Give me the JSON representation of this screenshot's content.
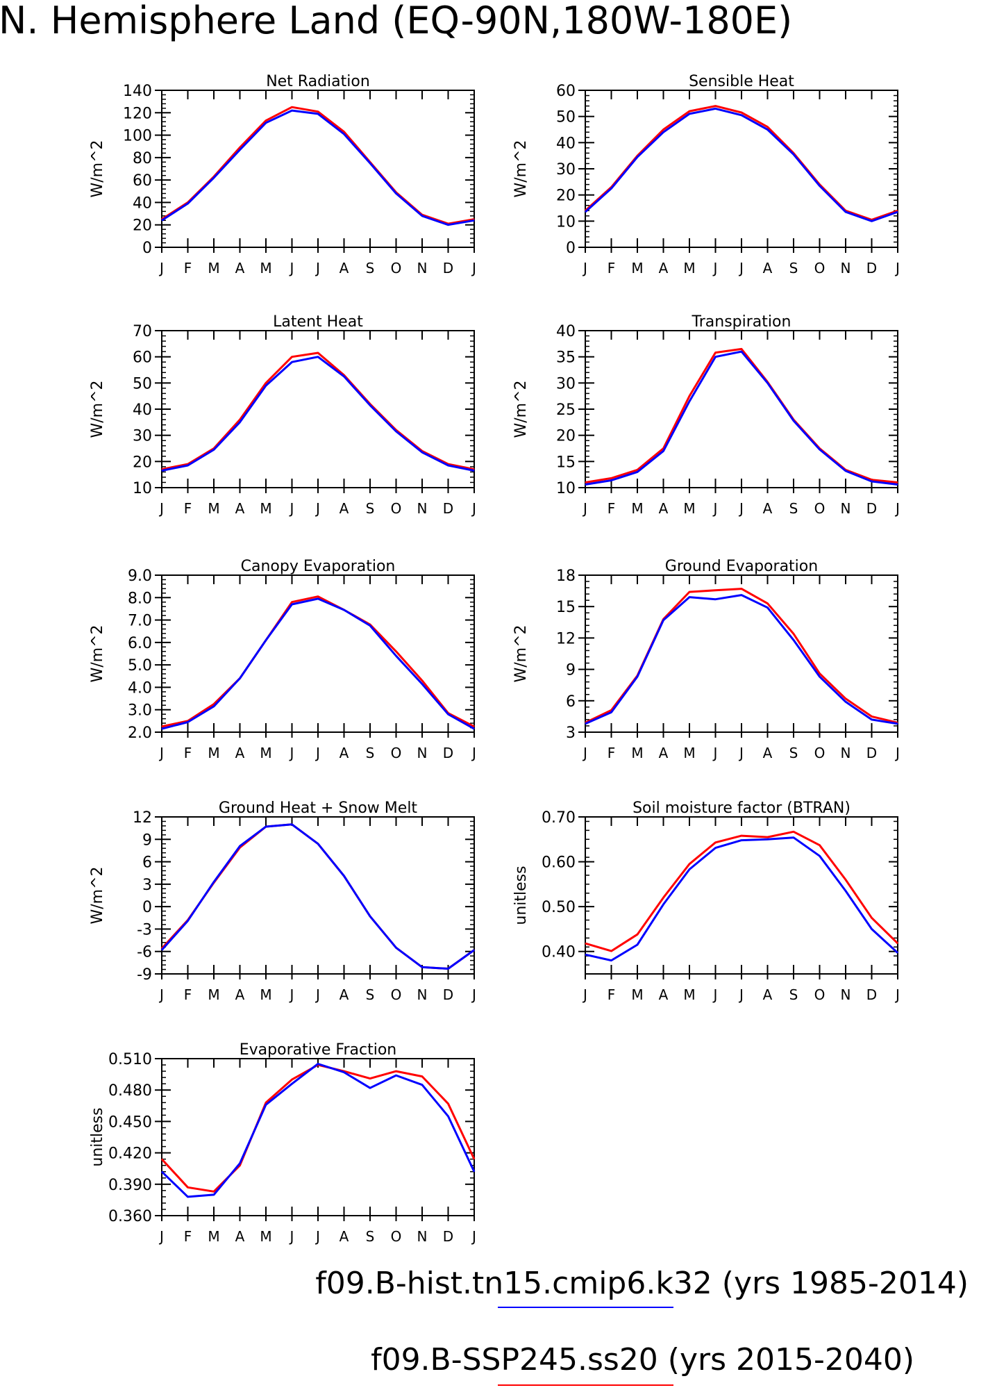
{
  "figure": {
    "title": "N. Hemisphere Land (EQ-90N,180W-180E)",
    "legend": [
      {
        "label": "f09.B-hist.tn15.cmip6.k32 (yrs 1985-2014)",
        "color": "#0000ff"
      },
      {
        "label": "f09.B-SSP245.ss20 (yrs 2015-2040)",
        "color": "#ff0000"
      }
    ],
    "colors": {
      "series_hist": "#0000ff",
      "series_ssp": "#ff0000",
      "axes": "#000000"
    }
  },
  "chart_data": [
    {
      "type": "line",
      "title": "Net Radiation",
      "ylabel": "W/m^2",
      "ylim": [
        0,
        140
      ],
      "yticks": [
        0,
        20,
        40,
        60,
        80,
        100,
        120,
        140
      ],
      "ytick_labels": [
        "0",
        "20",
        "40",
        "60",
        "80",
        "100",
        "120",
        "140"
      ],
      "categories": [
        "J",
        "F",
        "M",
        "A",
        "M",
        "J",
        "J",
        "A",
        "S",
        "O",
        "N",
        "D",
        "J"
      ],
      "series": [
        {
          "color": "#ff0000",
          "values": [
            25,
            40,
            63,
            89,
            113,
            125,
            121,
            103,
            76,
            49,
            29,
            21,
            25
          ]
        },
        {
          "color": "#0000ff",
          "values": [
            24,
            39,
            62,
            87,
            111,
            122,
            119,
            101,
            75,
            48,
            28,
            20,
            24
          ]
        }
      ]
    },
    {
      "type": "line",
      "title": "Sensible Heat",
      "ylabel": "W/m^2",
      "ylim": [
        0,
        60
      ],
      "yticks": [
        0,
        10,
        20,
        30,
        40,
        50,
        60
      ],
      "ytick_labels": [
        "0",
        "10",
        "20",
        "30",
        "40",
        "50",
        "60"
      ],
      "categories": [
        "J",
        "F",
        "M",
        "A",
        "M",
        "J",
        "J",
        "A",
        "S",
        "O",
        "N",
        "D",
        "J"
      ],
      "series": [
        {
          "color": "#ff0000",
          "values": [
            14,
            23,
            35,
            45,
            52,
            54,
            51.5,
            46,
            36,
            24,
            14,
            10.5,
            14
          ]
        },
        {
          "color": "#0000ff",
          "values": [
            13.5,
            22.5,
            34.5,
            44,
            51,
            53,
            50.5,
            45,
            35.5,
            23.5,
            13.5,
            10,
            13.5
          ]
        }
      ]
    },
    {
      "type": "line",
      "title": "Latent Heat",
      "ylabel": "W/m^2",
      "ylim": [
        10,
        70
      ],
      "yticks": [
        10,
        20,
        30,
        40,
        50,
        60,
        70
      ],
      "ytick_labels": [
        "10",
        "20",
        "30",
        "40",
        "50",
        "60",
        "70"
      ],
      "categories": [
        "J",
        "F",
        "M",
        "A",
        "M",
        "J",
        "J",
        "A",
        "S",
        "O",
        "N",
        "D",
        "J"
      ],
      "series": [
        {
          "color": "#ff0000",
          "values": [
            17,
            19,
            25,
            36,
            50,
            60,
            61.5,
            53,
            42,
            32,
            24,
            19,
            17
          ]
        },
        {
          "color": "#0000ff",
          "values": [
            16.5,
            18.5,
            24.5,
            35,
            49,
            58,
            60,
            52.5,
            41.5,
            31.5,
            23.5,
            18.5,
            16.5
          ]
        }
      ]
    },
    {
      "type": "line",
      "title": "Transpiration",
      "ylabel": "W/m^2",
      "ylim": [
        10,
        40
      ],
      "yticks": [
        10,
        15,
        20,
        25,
        30,
        35,
        40
      ],
      "ytick_labels": [
        "10",
        "15",
        "20",
        "25",
        "30",
        "35",
        "40"
      ],
      "categories": [
        "J",
        "F",
        "M",
        "A",
        "M",
        "J",
        "J",
        "A",
        "S",
        "O",
        "N",
        "D",
        "J"
      ],
      "series": [
        {
          "color": "#ff0000",
          "values": [
            11,
            11.8,
            13.4,
            17.5,
            27.5,
            35.8,
            36.5,
            30.2,
            23,
            17.5,
            13.4,
            11.5,
            11
          ]
        },
        {
          "color": "#0000ff",
          "values": [
            10.6,
            11.4,
            13,
            17,
            26.5,
            35,
            36,
            30,
            22.8,
            17.3,
            13.2,
            11.2,
            10.6
          ]
        }
      ]
    },
    {
      "type": "line",
      "title": "Canopy Evaporation",
      "ylabel": "W/m^2",
      "ylim": [
        2.0,
        9.0
      ],
      "yticks": [
        2,
        3,
        4,
        5,
        6,
        7,
        8,
        9
      ],
      "ytick_labels": [
        "2.0",
        "3.0",
        "4.0",
        "5.0",
        "6.0",
        "7.0",
        "8.0",
        "9.0"
      ],
      "categories": [
        "J",
        "F",
        "M",
        "A",
        "M",
        "J",
        "J",
        "A",
        "S",
        "O",
        "N",
        "D",
        "J"
      ],
      "series": [
        {
          "color": "#ff0000",
          "values": [
            2.25,
            2.5,
            3.25,
            4.4,
            6.1,
            7.8,
            8.05,
            7.45,
            6.8,
            5.6,
            4.3,
            2.85,
            2.25
          ]
        },
        {
          "color": "#0000ff",
          "values": [
            2.15,
            2.45,
            3.15,
            4.4,
            6.1,
            7.7,
            7.95,
            7.45,
            6.75,
            5.4,
            4.15,
            2.8,
            2.15
          ]
        }
      ]
    },
    {
      "type": "line",
      "title": "Ground Evaporation",
      "ylabel": "W/m^2",
      "ylim": [
        3,
        18
      ],
      "yticks": [
        3,
        6,
        9,
        12,
        15,
        18
      ],
      "ytick_labels": [
        "3",
        "6",
        "9",
        "12",
        "15",
        "18"
      ],
      "categories": [
        "J",
        "F",
        "M",
        "A",
        "M",
        "J",
        "J",
        "A",
        "S",
        "O",
        "N",
        "D",
        "J"
      ],
      "series": [
        {
          "color": "#ff0000",
          "values": [
            3.9,
            5.1,
            8.4,
            13.8,
            16.4,
            16.55,
            16.7,
            15.3,
            12.4,
            8.6,
            6.2,
            4.5,
            3.9
          ]
        },
        {
          "color": "#0000ff",
          "values": [
            3.8,
            4.9,
            8.3,
            13.7,
            15.9,
            15.7,
            16.1,
            14.9,
            11.8,
            8.3,
            5.9,
            4.2,
            3.8
          ]
        }
      ]
    },
    {
      "type": "line",
      "title": "Ground Heat + Snow Melt",
      "ylabel": "W/m^2",
      "ylim": [
        -9,
        12
      ],
      "yticks": [
        -9,
        -6,
        -3,
        0,
        3,
        6,
        9,
        12
      ],
      "ytick_labels": [
        "-9",
        "-6",
        "-3",
        "0",
        "3",
        "6",
        "9",
        "12"
      ],
      "categories": [
        "J",
        "F",
        "M",
        "A",
        "M",
        "J",
        "J",
        "A",
        "S",
        "O",
        "N",
        "D",
        "J"
      ],
      "series": [
        {
          "color": "#ff0000",
          "values": [
            -5.6,
            -1.8,
            3.2,
            7.9,
            10.7,
            11,
            8.4,
            4.1,
            -1.3,
            -5.5,
            -8.1,
            -8.3,
            -5.8
          ]
        },
        {
          "color": "#0000ff",
          "values": [
            -5.8,
            -1.9,
            3.3,
            8.1,
            10.7,
            11,
            8.4,
            4.1,
            -1.3,
            -5.5,
            -8.1,
            -8.3,
            -5.8
          ]
        }
      ]
    },
    {
      "type": "line",
      "title": "Soil moisture factor (BTRAN)",
      "ylabel": "unitless",
      "ylim": [
        0.35,
        0.7
      ],
      "yticks": [
        0.4,
        0.5,
        0.6,
        0.7
      ],
      "ytick_labels": [
        "0.40",
        "0.50",
        "0.60",
        "0.70"
      ],
      "categories": [
        "J",
        "F",
        "M",
        "A",
        "M",
        "J",
        "J",
        "A",
        "S",
        "O",
        "N",
        "D",
        "J"
      ],
      "series": [
        {
          "color": "#ff0000",
          "values": [
            0.418,
            0.401,
            0.438,
            0.52,
            0.595,
            0.643,
            0.658,
            0.655,
            0.667,
            0.637,
            0.56,
            0.475,
            0.418
          ]
        },
        {
          "color": "#0000ff",
          "values": [
            0.393,
            0.38,
            0.415,
            0.505,
            0.583,
            0.631,
            0.648,
            0.65,
            0.654,
            0.613,
            0.535,
            0.45,
            0.397
          ]
        }
      ]
    },
    {
      "type": "line",
      "title": "Evaporative Fraction",
      "ylabel": "unitless",
      "ylim": [
        0.36,
        0.51
      ],
      "yticks": [
        0.36,
        0.39,
        0.42,
        0.45,
        0.48,
        0.51
      ],
      "ytick_labels": [
        "0.360",
        "0.390",
        "0.420",
        "0.450",
        "0.480",
        "0.510"
      ],
      "categories": [
        "J",
        "F",
        "M",
        "A",
        "M",
        "J",
        "J",
        "A",
        "S",
        "O",
        "N",
        "D",
        "J"
      ],
      "series": [
        {
          "color": "#ff0000",
          "values": [
            0.414,
            0.387,
            0.383,
            0.408,
            0.468,
            0.49,
            0.504,
            0.498,
            0.491,
            0.498,
            0.493,
            0.467,
            0.414
          ]
        },
        {
          "color": "#0000ff",
          "values": [
            0.402,
            0.378,
            0.38,
            0.41,
            0.466,
            0.486,
            0.505,
            0.497,
            0.482,
            0.494,
            0.485,
            0.455,
            0.402
          ]
        }
      ]
    }
  ]
}
